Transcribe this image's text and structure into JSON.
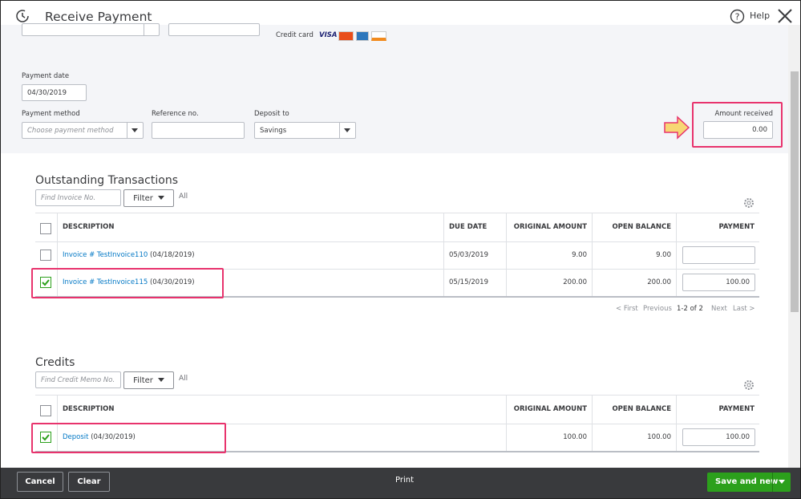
{
  "header": {
    "title": "Receive Payment",
    "help": "Help"
  },
  "top": {
    "credit_card": "Credit card",
    "visa": "VISA"
  },
  "form": {
    "payment_date_label": "Payment date",
    "payment_date": "04/30/2019",
    "payment_method_label": "Payment method",
    "payment_method_placeholder": "Choose payment method",
    "reference_label": "Reference no.",
    "deposit_to_label": "Deposit to",
    "deposit_to": "Savings",
    "amount_received_label": "Amount received",
    "amount_received": "0.00"
  },
  "outstanding": {
    "title": "Outstanding Transactions",
    "search_placeholder": "Find Invoice No.",
    "filter": "Filter",
    "all": "All",
    "columns": [
      "DESCRIPTION",
      "DUE DATE",
      "ORIGINAL AMOUNT",
      "OPEN BALANCE",
      "PAYMENT"
    ],
    "rows": [
      {
        "checked": false,
        "link": "Invoice # TestInvoice110",
        "date": "(04/18/2019)",
        "due": "05/03/2019",
        "original": "9.00",
        "open": "9.00"
      },
      {
        "checked": true,
        "link": "Invoice # TestInvoice115",
        "date": "(04/30/2019)",
        "due": "05/15/2019",
        "original": "200.00",
        "open": "200.00",
        "payment": "100.00"
      }
    ],
    "pagination": {
      "first": "< First",
      "previous": "Previous",
      "count": "1-2 of 2",
      "next": "Next",
      "last": "Last >"
    }
  },
  "credits": {
    "title": "Credits",
    "search_placeholder": "Find Credit Memo No.",
    "filter": "Filter",
    "all": "All",
    "columns": [
      "DESCRIPTION",
      "ORIGINAL AMOUNT",
      "OPEN BALANCE",
      "PAYMENT"
    ],
    "rows": [
      {
        "checked": true,
        "link": "Deposit",
        "date": "(04/30/2019)",
        "original": "100.00",
        "open": "100.00",
        "payment": "100.00"
      }
    ]
  },
  "footer": {
    "cancel": "Cancel",
    "clear": "Clear",
    "print": "Print",
    "save": "Save and new"
  }
}
